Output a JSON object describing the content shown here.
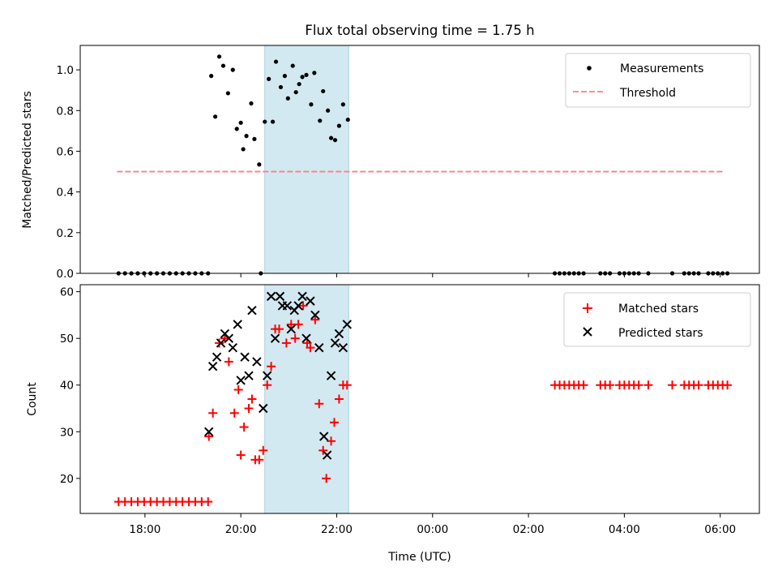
{
  "chart_data": [
    {
      "type": "scatter",
      "title": "Flux total observing time = 1.75 h",
      "xlabel": "",
      "ylabel": "Matched/Predicted stars",
      "ylim": [
        0,
        1.12
      ],
      "xlim": [
        "16:39",
        "06:49"
      ],
      "yticks": [
        "0.0",
        "0.2",
        "0.4",
        "0.6",
        "0.8",
        "1.0"
      ],
      "grid": false,
      "legend_location": "top-right",
      "highlight_span": {
        "start": "20:30",
        "end": "22:15",
        "color": "#d3e9f1"
      },
      "series": [
        {
          "name": "Measurements",
          "color": "#000000",
          "points": [
            [
              "17:27",
              0
            ],
            [
              "17:35",
              0
            ],
            [
              "17:43",
              0
            ],
            [
              "17:51",
              0
            ],
            [
              "17:59",
              0
            ],
            [
              "18:07",
              0
            ],
            [
              "18:15",
              0
            ],
            [
              "18:23",
              0
            ],
            [
              "18:31",
              0
            ],
            [
              "18:39",
              0
            ],
            [
              "18:47",
              0
            ],
            [
              "18:55",
              0
            ],
            [
              "19:03",
              0
            ],
            [
              "19:11",
              0
            ],
            [
              "19:19",
              0
            ],
            [
              "19:23",
              0.97
            ],
            [
              "19:28",
              0.77
            ],
            [
              "19:33",
              1.065
            ],
            [
              "19:38",
              1.02
            ],
            [
              "19:44",
              0.885
            ],
            [
              "19:50",
              1.0
            ],
            [
              "19:55",
              0.71
            ],
            [
              "20:00",
              0.74
            ],
            [
              "20:03",
              0.61
            ],
            [
              "20:07",
              0.675
            ],
            [
              "20:13",
              0.835
            ],
            [
              "20:17",
              0.66
            ],
            [
              "20:23",
              0.535
            ],
            [
              "20:25",
              0
            ],
            [
              "20:30",
              0.745
            ],
            [
              "20:35",
              0.955
            ],
            [
              "20:40",
              0.745
            ],
            [
              "20:44",
              1.04
            ],
            [
              "20:50",
              0.915
            ],
            [
              "20:55",
              0.97
            ],
            [
              "20:59",
              0.86
            ],
            [
              "21:05",
              1.02
            ],
            [
              "21:09",
              0.89
            ],
            [
              "21:13",
              0.93
            ],
            [
              "21:17",
              0.965
            ],
            [
              "21:22",
              0.975
            ],
            [
              "21:28",
              0.83
            ],
            [
              "21:32",
              0.985
            ],
            [
              "21:39",
              0.75
            ],
            [
              "21:43",
              0.895
            ],
            [
              "21:49",
              0.8
            ],
            [
              "21:53",
              0.665
            ],
            [
              "21:58",
              0.655
            ],
            [
              "22:03",
              0.725
            ],
            [
              "22:08",
              0.83
            ],
            [
              "22:14",
              0.755
            ],
            [
              "02:33",
              0
            ],
            [
              "02:39",
              0
            ],
            [
              "02:45",
              0
            ],
            [
              "02:51",
              0
            ],
            [
              "02:57",
              0
            ],
            [
              "03:03",
              0
            ],
            [
              "03:09",
              0
            ],
            [
              "03:30",
              0
            ],
            [
              "03:36",
              0
            ],
            [
              "03:42",
              0
            ],
            [
              "03:54",
              0
            ],
            [
              "04:00",
              0
            ],
            [
              "04:06",
              0
            ],
            [
              "04:12",
              0
            ],
            [
              "04:18",
              0
            ],
            [
              "04:30",
              0
            ],
            [
              "05:00",
              0
            ],
            [
              "05:15",
              0
            ],
            [
              "05:21",
              0
            ],
            [
              "05:27",
              0
            ],
            [
              "05:33",
              0
            ],
            [
              "05:45",
              0
            ],
            [
              "05:51",
              0
            ],
            [
              "05:57",
              0
            ],
            [
              "06:03",
              0
            ],
            [
              "06:09",
              0
            ]
          ]
        },
        {
          "name": "Threshold",
          "color": "#ff7f7f",
          "style": "dashed",
          "x": [
            "17:25",
            "06:05"
          ],
          "y": [
            0.5,
            0.5
          ]
        }
      ]
    },
    {
      "type": "scatter",
      "title": "",
      "xlabel": "Time (UTC)",
      "ylabel": "Count",
      "ylim": [
        12.5,
        61.5
      ],
      "xlim": [
        "16:39",
        "06:49"
      ],
      "yticks": [
        "20",
        "30",
        "40",
        "50",
        "60"
      ],
      "xticks": [
        "18:00",
        "20:00",
        "22:00",
        "00:00",
        "02:00",
        "04:00",
        "06:00"
      ],
      "grid": false,
      "legend_location": "top-right",
      "highlight_span": {
        "start": "20:30",
        "end": "22:15",
        "color": "#d3e9f1"
      },
      "series": [
        {
          "name": "Matched stars",
          "color": "#ff0000",
          "marker": "+",
          "points": [
            [
              "17:27",
              15
            ],
            [
              "17:35",
              15
            ],
            [
              "17:43",
              15
            ],
            [
              "17:51",
              15
            ],
            [
              "17:59",
              15
            ],
            [
              "18:07",
              15
            ],
            [
              "18:15",
              15
            ],
            [
              "18:23",
              15
            ],
            [
              "18:31",
              15
            ],
            [
              "18:39",
              15
            ],
            [
              "18:47",
              15
            ],
            [
              "18:55",
              15
            ],
            [
              "19:03",
              15
            ],
            [
              "19:11",
              15
            ],
            [
              "19:19",
              15
            ],
            [
              "19:20",
              29
            ],
            [
              "19:25",
              34
            ],
            [
              "19:33",
              49
            ],
            [
              "19:40",
              50
            ],
            [
              "19:45",
              45
            ],
            [
              "19:52",
              34
            ],
            [
              "19:57",
              39
            ],
            [
              "20:00",
              25
            ],
            [
              "20:04",
              31
            ],
            [
              "20:10",
              35
            ],
            [
              "20:14",
              37
            ],
            [
              "20:18",
              24
            ],
            [
              "20:23",
              24
            ],
            [
              "20:28",
              26
            ],
            [
              "20:33",
              40
            ],
            [
              "20:38",
              44
            ],
            [
              "20:43",
              52
            ],
            [
              "20:48",
              52
            ],
            [
              "20:57",
              49
            ],
            [
              "21:03",
              53
            ],
            [
              "21:08",
              50
            ],
            [
              "21:12",
              53
            ],
            [
              "21:18",
              57
            ],
            [
              "21:23",
              49
            ],
            [
              "21:27",
              48
            ],
            [
              "21:33",
              54
            ],
            [
              "21:38",
              36
            ],
            [
              "21:43",
              26
            ],
            [
              "21:47",
              20
            ],
            [
              "21:53",
              28
            ],
            [
              "21:57",
              32
            ],
            [
              "22:03",
              37
            ],
            [
              "22:08",
              40
            ],
            [
              "22:13",
              40
            ],
            [
              "02:33",
              40
            ],
            [
              "02:39",
              40
            ],
            [
              "02:45",
              40
            ],
            [
              "02:51",
              40
            ],
            [
              "02:57",
              40
            ],
            [
              "03:03",
              40
            ],
            [
              "03:09",
              40
            ],
            [
              "03:30",
              40
            ],
            [
              "03:36",
              40
            ],
            [
              "03:42",
              40
            ],
            [
              "03:54",
              40
            ],
            [
              "04:00",
              40
            ],
            [
              "04:06",
              40
            ],
            [
              "04:12",
              40
            ],
            [
              "04:18",
              40
            ],
            [
              "04:30",
              40
            ],
            [
              "05:00",
              40
            ],
            [
              "05:15",
              40
            ],
            [
              "05:21",
              40
            ],
            [
              "05:27",
              40
            ],
            [
              "05:33",
              40
            ],
            [
              "05:45",
              40
            ],
            [
              "05:51",
              40
            ],
            [
              "05:57",
              40
            ],
            [
              "06:03",
              40
            ],
            [
              "06:09",
              40
            ]
          ]
        },
        {
          "name": "Predicted stars",
          "color": "#000000",
          "marker": "x",
          "points": [
            [
              "19:20",
              30
            ],
            [
              "19:25",
              44
            ],
            [
              "19:30",
              46
            ],
            [
              "19:35",
              49
            ],
            [
              "19:40",
              51
            ],
            [
              "19:45",
              50
            ],
            [
              "19:50",
              48
            ],
            [
              "19:56",
              53
            ],
            [
              "20:00",
              41
            ],
            [
              "20:05",
              46
            ],
            [
              "20:10",
              42
            ],
            [
              "20:14",
              56
            ],
            [
              "20:20",
              45
            ],
            [
              "20:28",
              35
            ],
            [
              "20:33",
              42
            ],
            [
              "20:38",
              59
            ],
            [
              "20:43",
              50
            ],
            [
              "20:49",
              59
            ],
            [
              "20:52",
              57
            ],
            [
              "20:58",
              57
            ],
            [
              "21:03",
              52
            ],
            [
              "21:07",
              56
            ],
            [
              "21:12",
              57
            ],
            [
              "21:17",
              59
            ],
            [
              "21:22",
              50
            ],
            [
              "21:27",
              58
            ],
            [
              "21:33",
              55
            ],
            [
              "21:38",
              48
            ],
            [
              "21:44",
              29
            ],
            [
              "21:48",
              25
            ],
            [
              "21:53",
              42
            ],
            [
              "21:58",
              49
            ],
            [
              "22:03",
              51
            ],
            [
              "22:08",
              48
            ],
            [
              "22:13",
              53
            ]
          ]
        }
      ]
    }
  ]
}
